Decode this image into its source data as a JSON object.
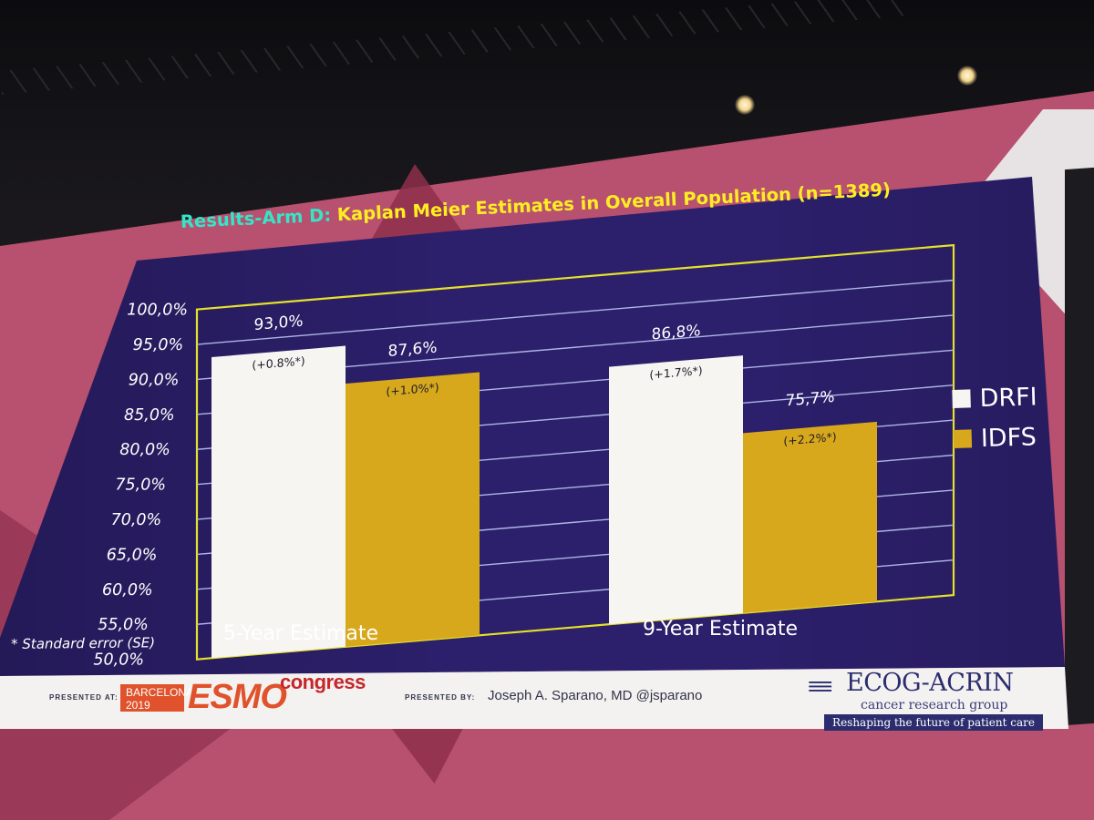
{
  "slide": {
    "title_prefix": "Results-Arm D:",
    "title_main": "Kaplan Meier Estimates in Overall Population (n=1389)",
    "footnote": "* Standard error (SE)"
  },
  "chart_data": {
    "type": "bar",
    "categories": [
      "5-Year Estimate",
      "9-Year Estimate"
    ],
    "series": [
      {
        "name": "DRFI",
        "values": [
          93.0,
          86.8
        ],
        "labels": [
          "93,0%",
          "86,8%"
        ],
        "se_labels": [
          "(+0.8%*)",
          "(+1.7%*)"
        ],
        "color": "#f7f5f1"
      },
      {
        "name": "IDFS",
        "values": [
          87.6,
          75.7
        ],
        "labels": [
          "87,6%",
          "75,7%"
        ],
        "se_labels": [
          "(+1.0%*)",
          "(+2.2%*)"
        ],
        "color": "#d8a81c"
      }
    ],
    "ylim": [
      50,
      100
    ],
    "yticks": [
      50,
      55,
      60,
      65,
      70,
      75,
      80,
      85,
      90,
      95,
      100
    ],
    "ytick_labels": [
      "50,0%",
      "55,0%",
      "60,0%",
      "65,0%",
      "70,0%",
      "75,0%",
      "80,0%",
      "85,0%",
      "90,0%",
      "95,0%",
      "100,0%"
    ],
    "grid": true,
    "legend_position": "right",
    "plot_border_color": "#e6e12a",
    "gridline_color": "#aeb6e6"
  },
  "footer": {
    "presented_at": "PRESENTED AT:",
    "event_city": "BARCELONA",
    "event_year": "2019",
    "event_brand": "ESMO",
    "event_suffix": "congress",
    "presented_by": "PRESENTED BY:",
    "presenter": "Joseph A. Sparano, MD   @jsparano",
    "org_name": "ECOG-ACRIN",
    "org_subtitle": "cancer research group",
    "org_tagline": "Reshaping the future of patient care"
  }
}
